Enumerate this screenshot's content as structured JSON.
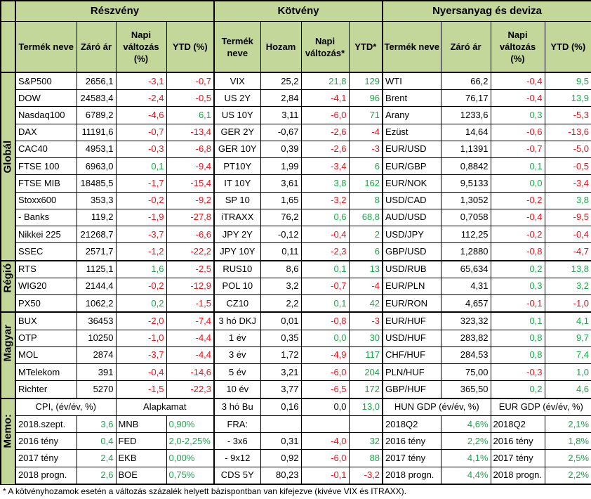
{
  "sections": {
    "equity": "Részvény",
    "bond": "Kötvény",
    "commodity": "Nyersanyag és deviza"
  },
  "headers": {
    "equity": [
      "Termék neve",
      "Záró ár",
      "Napi változás (%)",
      "YTD (%)"
    ],
    "bond": [
      "Termék neve",
      "Hozam",
      "Napi változás*",
      "YTD*"
    ],
    "commodity": [
      "Termék neve",
      "Záró ár",
      "Napi változás (%)",
      "YTD (%)"
    ]
  },
  "groups": [
    {
      "label": "Globál",
      "rows": [
        {
          "e": [
            "S&P500",
            "2656,1",
            "-3,1",
            "-0,7"
          ],
          "b": [
            "VIX",
            "25,2",
            "21,8",
            "129"
          ],
          "c": [
            "WTI",
            "66,2",
            "-0,4",
            "9,5"
          ]
        },
        {
          "e": [
            "DOW",
            "24583,4",
            "-2,4",
            "-0,5"
          ],
          "b": [
            "US 2Y",
            "2,84",
            "-4,1",
            "96"
          ],
          "c": [
            "Brent",
            "76,17",
            "-0,4",
            "13,9"
          ]
        },
        {
          "e": [
            "Nasdaq100",
            "6789,2",
            "-4,6",
            "6,1"
          ],
          "b": [
            "US 10Y",
            "3,11",
            "-6,0",
            "71"
          ],
          "c": [
            "Arany",
            "1233,6",
            "0,3",
            "-5,3"
          ]
        },
        {
          "e": [
            "DAX",
            "11191,6",
            "-0,7",
            "-13,4"
          ],
          "b": [
            "GER 2Y",
            "-0,67",
            "-2,6",
            "-4"
          ],
          "c": [
            "Ezüst",
            "14,64",
            "-0,6",
            "-13,6"
          ]
        },
        {
          "e": [
            "CAC40",
            "4953,1",
            "-0,3",
            "-6,8"
          ],
          "b": [
            "GER 10Y",
            "0,39",
            "-2,6",
            "-3"
          ],
          "c": [
            "EUR/USD",
            "1,1391",
            "-0,7",
            "-5,0"
          ]
        },
        {
          "e": [
            "FTSE 100",
            "6963,0",
            "0,1",
            "-9,4"
          ],
          "b": [
            "PT10Y",
            "1,99",
            "-3,4",
            "6"
          ],
          "c": [
            "EUR/GBP",
            "0,8842",
            "0,1",
            "-0,5"
          ]
        },
        {
          "e": [
            "FTSE MIB",
            "18485,5",
            "-1,7",
            "-15,4"
          ],
          "b": [
            "IT 10Y",
            "3,61",
            "3,8",
            "162"
          ],
          "c": [
            "EUR/NOK",
            "9,5133",
            "0,0",
            "-3,4"
          ]
        },
        {
          "e": [
            "Stoxx600",
            "353,3",
            "-0,2",
            "-9,2"
          ],
          "b": [
            "SP 10",
            "1,65",
            "-3,2",
            "8"
          ],
          "c": [
            "USD/CAD",
            "1,3052",
            "-0,2",
            "3,8"
          ]
        },
        {
          "e": [
            " - Banks",
            "119,2",
            "-1,9",
            "-27,8"
          ],
          "b": [
            "iTRAXX",
            "76,2",
            "0,6",
            "68,8"
          ],
          "c": [
            "AUD/USD",
            "0,7058",
            "-0,4",
            "-9,5"
          ]
        },
        {
          "e": [
            "Nikkei 225",
            "21268,7",
            "-3,7",
            "-6,6"
          ],
          "b": [
            "JPY 2Y",
            "-0,12",
            "-0,4",
            "2"
          ],
          "c": [
            "USD/JPY",
            "112,25",
            "-0,2",
            "-0,4"
          ]
        },
        {
          "e": [
            "SSEC",
            "2571,7",
            "-1,2",
            "-22,2"
          ],
          "b": [
            "JPY 10Y",
            "0,11",
            "-2,3",
            "6"
          ],
          "c": [
            "GBP/USD",
            "1,2880",
            "-0,8",
            "-4,7"
          ]
        }
      ]
    },
    {
      "label": "Régió",
      "rows": [
        {
          "e": [
            "RTS",
            "1125,1",
            "1,6",
            "-2,5"
          ],
          "b": [
            "RUS10",
            "8,6",
            "0,1",
            "13"
          ],
          "c": [
            "USD/RUB",
            "65,634",
            "0,2",
            "13,8"
          ]
        },
        {
          "e": [
            "WIG20",
            "2144,4",
            "-0,2",
            "-12,9"
          ],
          "b": [
            "POL 10",
            "3,2",
            "-0,7",
            "-4"
          ],
          "c": [
            "EUR/PLN",
            "4,31",
            "0,3",
            "3,2"
          ]
        },
        {
          "e": [
            "PX50",
            "1062,2",
            "0,2",
            "-1,5"
          ],
          "b": [
            "CZ10",
            "2,2",
            "0,1",
            "42"
          ],
          "c": [
            "EUR/RON",
            "4,657",
            "-0,1",
            "-1,0"
          ]
        }
      ]
    },
    {
      "label": "Magyar",
      "rows": [
        {
          "e": [
            "BUX",
            "36453",
            "-2,0",
            "-7,4"
          ],
          "b": [
            "3 hó DKJ",
            "0,01",
            "-0,8",
            "-3"
          ],
          "c": [
            "EUR/HUF",
            "323,32",
            "0,1",
            "4,1"
          ]
        },
        {
          "e": [
            "OTP",
            "10250",
            "-1,0",
            "-4,4"
          ],
          "b": [
            "1 év",
            "0,35",
            "0,0",
            "30"
          ],
          "c": [
            "USD/HUF",
            "283,82",
            "0,8",
            "9,7"
          ]
        },
        {
          "e": [
            "MOL",
            "2874",
            "-3,7",
            "-4,4"
          ],
          "b": [
            "3 év",
            "1,72",
            "-4,9",
            "117"
          ],
          "c": [
            "CHF/HUF",
            "284,53",
            "0,8",
            "7,4"
          ]
        },
        {
          "e": [
            "MTelekom",
            "391",
            "-0,4",
            "-14,6"
          ],
          "b": [
            "5 év",
            "3,21",
            "-6,0",
            "204"
          ],
          "c": [
            "PLN/HUF",
            "75,00",
            "-0,3",
            "1,0"
          ]
        },
        {
          "e": [
            "Richter",
            "5270",
            "-1,5",
            "-22,3"
          ],
          "b": [
            "10 év",
            "3,77",
            "-6,5",
            "172"
          ],
          "c": [
            "GBP/HUF",
            "365,50",
            "0,2",
            "4,6"
          ]
        }
      ]
    }
  ],
  "memo": {
    "label": "Memo:",
    "cpi_header": "CPI, (év/év, %)",
    "rate_header": "Alapkamat",
    "hun_gdp_header": "HUN GDP (év/év, %)",
    "eur_gdp_header": "EUR GDP (év/év, %)",
    "bond_header": [
      "3 hó Bu",
      "0,16",
      "0,0",
      "13,0"
    ],
    "rows": [
      {
        "cpi": [
          "2018.szept.",
          "3,6"
        ],
        "rate": [
          "MNB",
          "0,90%"
        ],
        "bond": [
          "FRA:",
          "",
          "",
          ""
        ],
        "hun": [
          "2018Q2",
          "4,6%"
        ],
        "eur": [
          "2018Q2",
          "2,1%"
        ]
      },
      {
        "cpi": [
          "2016 tény",
          "0,4"
        ],
        "rate": [
          "FED",
          "2,0-2,25%"
        ],
        "bond": [
          " - 3x6",
          "0,31",
          "-4,0",
          "32"
        ],
        "hun": [
          "2016 tény",
          "2,2%"
        ],
        "eur": [
          "2016 tény",
          "1,8%"
        ]
      },
      {
        "cpi": [
          "2017 tény",
          "2,4"
        ],
        "rate": [
          "EKB",
          "0,00%"
        ],
        "bond": [
          " - 9x12",
          "0,92",
          "-6,0",
          "88"
        ],
        "hun": [
          "2017 tény",
          "4,1%"
        ],
        "eur": [
          "2017 tény",
          "2,5%"
        ]
      },
      {
        "cpi": [
          "2018 progn.",
          "2,6"
        ],
        "rate": [
          "BOE",
          "0,75%"
        ],
        "bond": [
          "CDS 5Y",
          "80,23",
          "-0,1",
          "-3,2"
        ],
        "hun": [
          "2018 progn.",
          "4,4%"
        ],
        "eur": [
          "2018 progn.",
          "2,2%"
        ]
      }
    ]
  },
  "footnote": "* A kötvényhozamok esetén a változás százalék helyett bázispontban van kifejezve (kivéve VIX és ITRAXX)."
}
